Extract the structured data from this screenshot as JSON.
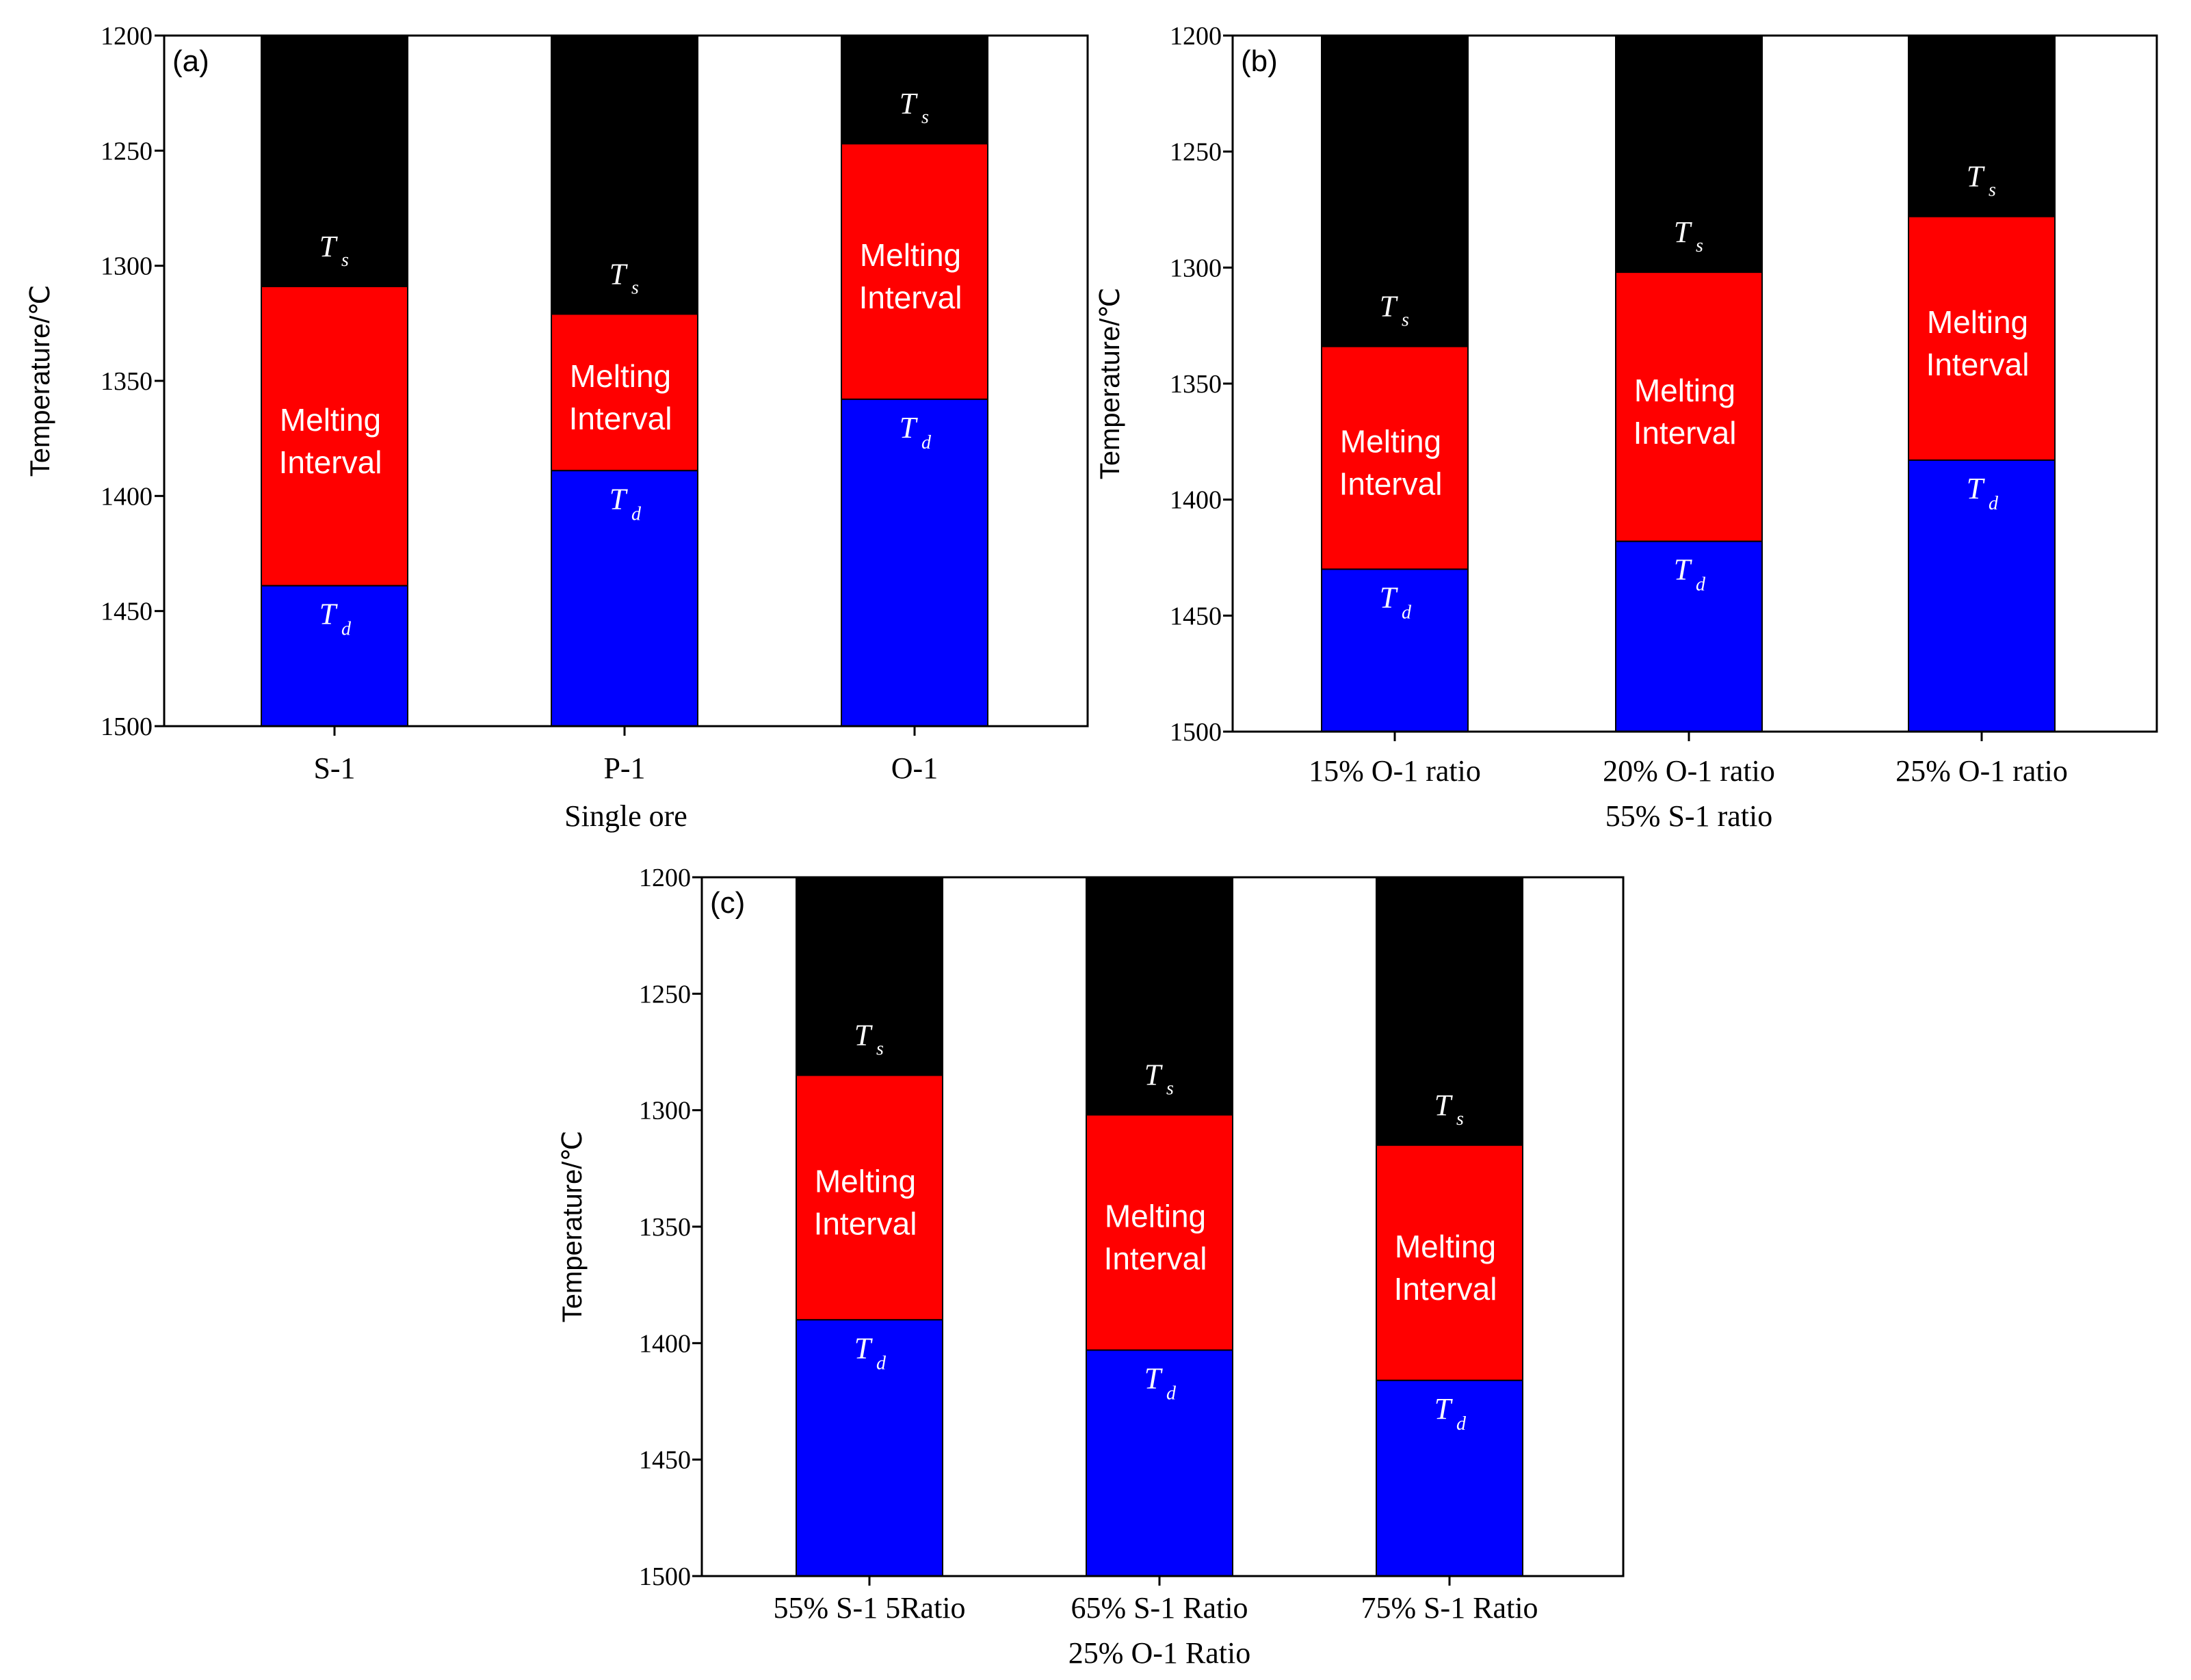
{
  "colors": {
    "solid": "#000000",
    "melting": "#ff0000",
    "dripping": "#0000ff",
    "frame": "#000000"
  },
  "chart_data": [
    {
      "panel": "(a)",
      "type": "bar",
      "ylabel": "Temperature/℃",
      "xlabel": "Single ore",
      "ylim": [
        1200,
        1500
      ],
      "yticks": [
        1200,
        1250,
        1300,
        1350,
        1400,
        1450,
        1500
      ],
      "inverted_y": true,
      "categories": [
        [
          "S-1"
        ],
        [
          "P-1"
        ],
        [
          "O-1"
        ]
      ],
      "series": [
        {
          "name": "T",
          "subscript": "s",
          "values": [
            1309,
            1321,
            1247
          ]
        },
        {
          "name": "Melting Interval",
          "lines": [
            "Melting",
            "Interval"
          ],
          "values": [
            130,
            68,
            111
          ]
        },
        {
          "name": "T",
          "subscript": "d",
          "values": [
            1439,
            1389,
            1358
          ]
        }
      ]
    },
    {
      "panel": "(b)",
      "type": "bar",
      "ylabel": "Temperature/℃",
      "xlabel": "",
      "ylim": [
        1200,
        1500
      ],
      "yticks": [
        1200,
        1250,
        1300,
        1350,
        1400,
        1450,
        1500
      ],
      "inverted_y": true,
      "categories": [
        [
          "15% O-1 ratio"
        ],
        [
          "20% O-1 ratio",
          "55% S-1 ratio"
        ],
        [
          "25% O-1 ratio"
        ]
      ],
      "series": [
        {
          "name": "T",
          "subscript": "s",
          "values": [
            1334,
            1302,
            1278
          ]
        },
        {
          "name": "Melting Interval",
          "lines": [
            "Melting",
            "Interval"
          ],
          "values": [
            96,
            116,
            105
          ]
        },
        {
          "name": "T",
          "subscript": "d",
          "values": [
            1430,
            1418,
            1383
          ]
        }
      ]
    },
    {
      "panel": "(c)",
      "type": "bar",
      "ylabel": "Temperature/℃",
      "xlabel": "",
      "ylim": [
        1200,
        1500
      ],
      "yticks": [
        1200,
        1250,
        1300,
        1350,
        1400,
        1450,
        1500
      ],
      "inverted_y": true,
      "categories": [
        [
          "55% S-1 5Ratio"
        ],
        [
          "65% S-1 Ratio",
          "25% O-1 Ratio"
        ],
        [
          "75% S-1 Ratio"
        ]
      ],
      "series": [
        {
          "name": "T",
          "subscript": "s",
          "values": [
            1285,
            1302,
            1315
          ]
        },
        {
          "name": "Melting Interval",
          "lines": [
            "Melting",
            "Interval"
          ],
          "values": [
            105,
            101,
            101
          ]
        },
        {
          "name": "T",
          "subscript": "d",
          "values": [
            1390,
            1403,
            1416
          ]
        }
      ]
    }
  ]
}
